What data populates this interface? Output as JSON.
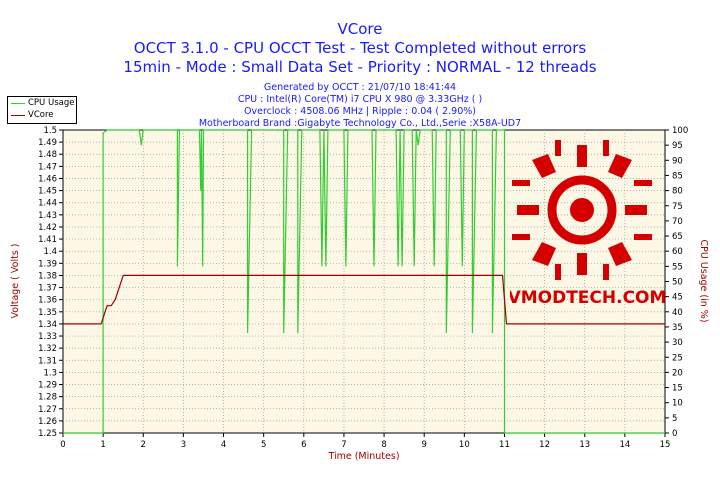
{
  "chart_data": {
    "type": "line",
    "title": "VCore",
    "subtitle_1": "OCCT 3.1.0 - CPU OCCT Test - Test Completed without errors",
    "subtitle_2": "15min - Mode : Small Data Set - Priority : NORMAL - 12 threads",
    "info_lines": [
      "Generated by OCCT : 21/07/10 18:41:44",
      "CPU : Intel(R) Core(TM) i7 CPU X 980 @ 3.33GHz (  )",
      "Overclock : 4508.06 MHz | Ripple : 0.04 ( 2.90%)",
      "Motherboard Brand :Gigabyte Technology Co., Ltd.,Serie :X58A-UD7"
    ],
    "xlabel": "Time (Minutes)",
    "ylabel_left": "Voltage ( Volts )",
    "ylabel_right": "CPU Usage (in %)",
    "xlim": [
      0,
      15
    ],
    "ylim_left": [
      1.25,
      1.5
    ],
    "ylim_right": [
      0,
      100
    ],
    "x_ticks": [
      "0",
      "1",
      "2",
      "3",
      "4",
      "5",
      "6",
      "7",
      "8",
      "9",
      "10",
      "11",
      "12",
      "13",
      "14",
      "15"
    ],
    "y_left_ticks": [
      "1.25",
      "1.26",
      "1.27",
      "1.28",
      "1.29",
      "1.3",
      "1.31",
      "1.32",
      "1.33",
      "1.34",
      "1.35",
      "1.36",
      "1.37",
      "1.38",
      "1.39",
      "1.4",
      "1.41",
      "1.42",
      "1.43",
      "1.44",
      "1.45",
      "1.46",
      "1.47",
      "1.48",
      "1.49",
      "1.5"
    ],
    "y_right_ticks": [
      "0",
      "5",
      "10",
      "15",
      "20",
      "25",
      "30",
      "35",
      "40",
      "45",
      "50",
      "55",
      "60",
      "65",
      "70",
      "75",
      "80",
      "85",
      "90",
      "95",
      "100"
    ],
    "grid": true,
    "legend_position": "top-left",
    "series": [
      {
        "name": "CPU Usage",
        "axis": "right",
        "color": "#33cc33",
        "x": [
          0,
          1.0,
          1.0,
          1.1,
          1.15,
          1.2,
          1.3,
          1.3,
          1.3,
          1.9,
          1.95,
          2.0,
          2.05,
          2.1,
          2.2,
          2.25,
          2.3,
          2.8,
          2.85,
          2.85,
          2.9,
          2.95,
          3.0,
          3.4,
          3.43,
          3.45,
          3.48,
          3.5,
          3.9,
          4.1,
          4.5,
          4.6,
          4.6,
          4.7,
          4.9,
          5.4,
          5.5,
          5.5,
          5.6,
          5.8,
          5.85,
          5.85,
          5.95,
          6.4,
          6.45,
          6.5,
          6.55,
          6.6,
          7.0,
          7.05,
          7.1,
          7.15,
          7.3,
          7.7,
          7.75,
          7.8,
          7.85,
          8.3,
          8.35,
          8.4,
          8.45,
          8.5,
          8.7,
          8.75,
          8.8,
          8.85,
          8.9,
          9.2,
          9.25,
          9.3,
          9.35,
          9.5,
          9.55,
          9.55,
          9.65,
          9.9,
          9.95,
          10.0,
          10.05,
          10.15,
          10.2,
          10.2,
          10.3,
          10.6,
          10.7,
          10.7,
          10.8,
          10.95,
          11.0,
          11.0,
          11.0,
          15
        ],
        "y": [
          0,
          0,
          99,
          100,
          100,
          100,
          100,
          100,
          100,
          100,
          95,
          100,
          100,
          100,
          100,
          100,
          100,
          100,
          100,
          55,
          100,
          100,
          100,
          100,
          80,
          100,
          55,
          100,
          100,
          100,
          100,
          100,
          33,
          100,
          100,
          100,
          100,
          33,
          100,
          100,
          100,
          33,
          100,
          100,
          55,
          100,
          55,
          100,
          100,
          55,
          100,
          100,
          100,
          100,
          55,
          100,
          100,
          100,
          55,
          100,
          55,
          100,
          100,
          55,
          100,
          95,
          100,
          100,
          55,
          100,
          100,
          100,
          100,
          33,
          100,
          100,
          55,
          100,
          100,
          100,
          100,
          33,
          100,
          100,
          100,
          33,
          100,
          100,
          100,
          100,
          0,
          0
        ]
      },
      {
        "name": "VCore",
        "axis": "left",
        "color": "#a00000",
        "x": [
          0,
          0.95,
          1.0,
          1.05,
          1.1,
          1.2,
          1.3,
          1.3,
          1.4,
          1.4,
          1.5,
          1.5,
          10.95,
          11.0,
          11.05,
          15
        ],
        "y": [
          1.34,
          1.34,
          1.345,
          1.35,
          1.355,
          1.355,
          1.36,
          1.36,
          1.37,
          1.37,
          1.38,
          1.38,
          1.38,
          1.36,
          1.34,
          1.34
        ]
      }
    ]
  }
}
